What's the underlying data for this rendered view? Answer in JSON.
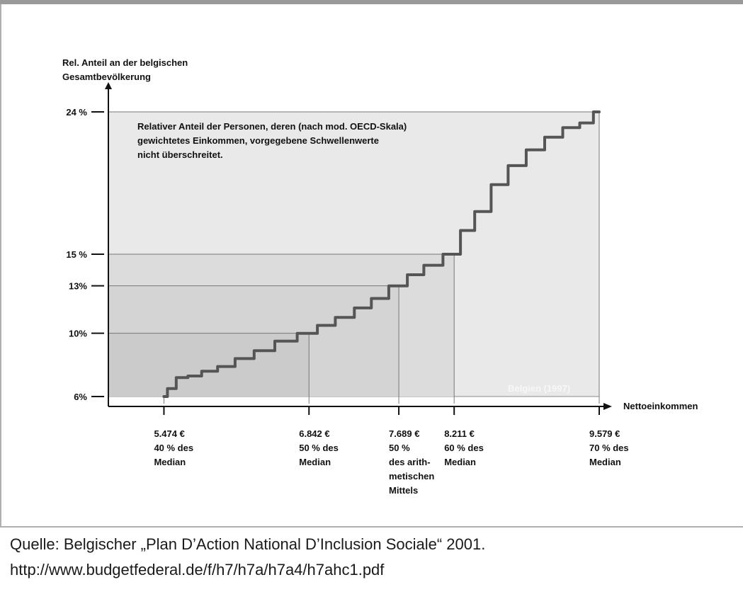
{
  "chart_data": {
    "type": "line",
    "ylabel_lines": [
      "Rel. Anteil an der belgischen",
      "Gesamtbevölkerung"
    ],
    "xlabel": "Nettoeinkommen",
    "annotation_lines": [
      "Relativer Anteil der Personen, deren (nach mod. OECD-Skala)",
      "gewichtetes Einkommen, vorgegebene Schwellenwerte",
      "nicht überschreitet."
    ],
    "watermark": "Belgien (1997)",
    "xlim": [
      4950,
      9579
    ],
    "ylim": [
      6,
      24
    ],
    "y_ticks": [
      {
        "value": 6,
        "label": "6%"
      },
      {
        "value": 10,
        "label": "10%"
      },
      {
        "value": 13,
        "label": "13%"
      },
      {
        "value": 15,
        "label": "15 %"
      },
      {
        "value": 24,
        "label": "24 %"
      }
    ],
    "thresholds": [
      {
        "x": 5474,
        "y": 6,
        "lines": [
          "5.474 €",
          "40 % des",
          "Median"
        ]
      },
      {
        "x": 6842,
        "y": 10,
        "lines": [
          "6.842 €",
          "50 % des",
          "Median"
        ]
      },
      {
        "x": 7689,
        "y": 13,
        "lines": [
          "7.689 €",
          "50 %",
          "des arith-",
          "metischen",
          "Mittels"
        ]
      },
      {
        "x": 8211,
        "y": 15,
        "lines": [
          "8.211 €",
          "60 % des",
          "Median"
        ]
      },
      {
        "x": 9579,
        "y": 24,
        "lines": [
          "9.579 €",
          "70 % des",
          "Median"
        ]
      }
    ],
    "series": [
      {
        "x": [
          5474,
          5540,
          5640,
          5760,
          5900,
          6060,
          6230,
          6420,
          6620,
          6842,
          7000,
          7180,
          7360,
          7500,
          7689,
          7850,
          8000,
          8211,
          8330,
          8480,
          8640,
          8800,
          8980,
          9150,
          9320,
          9470,
          9579
        ],
        "y": [
          6.0,
          6.5,
          7.2,
          7.3,
          7.6,
          7.9,
          8.4,
          8.9,
          9.5,
          10.0,
          10.5,
          11.0,
          11.6,
          12.2,
          13.0,
          13.7,
          14.3,
          15.0,
          16.5,
          17.7,
          19.4,
          20.6,
          21.6,
          22.4,
          23.0,
          23.3,
          24.0
        ]
      }
    ],
    "grid": false
  },
  "footer": {
    "source_line": "Quelle: Belgischer „Plan D’Action National D’Inclusion Sociale“ 2001.",
    "url_line": "http://www.budgetfederal.de/f/h7/h7a/h7a4/h7ahc1.pdf"
  },
  "colors": {
    "frame": "#a8a8a8",
    "plot_bg": "#e9e9e9",
    "shade_outer": "#dcdcdc",
    "shade_mid": "#d4d4d4",
    "shade_inner": "#cbcbcb",
    "curve": "#555555",
    "text": "#111111"
  }
}
